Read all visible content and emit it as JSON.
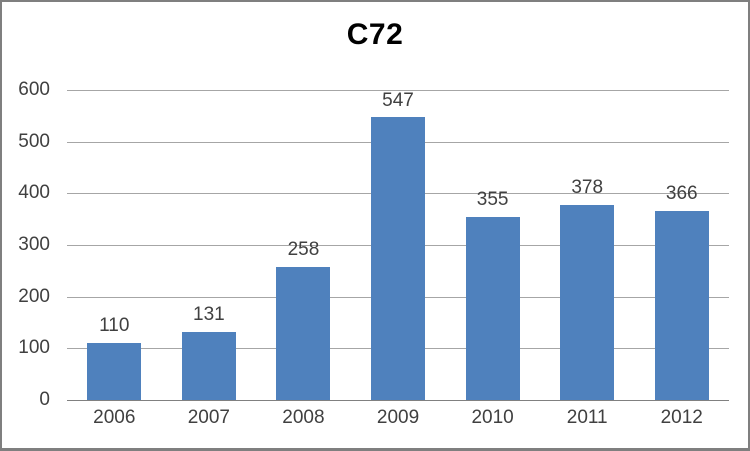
{
  "chart_data": {
    "type": "bar",
    "title": "C72",
    "categories": [
      "2006",
      "2007",
      "2008",
      "2009",
      "2010",
      "2011",
      "2012"
    ],
    "values": [
      110,
      131,
      258,
      547,
      355,
      378,
      366
    ],
    "y_ticks": [
      0,
      100,
      200,
      300,
      400,
      500,
      600
    ],
    "ylim": [
      0,
      600
    ],
    "xlabel": "",
    "ylabel": "",
    "grid": "horizontal",
    "legend": "none",
    "data_labels": "above-bars",
    "colors": {
      "bar": "#4F81BD",
      "gridline": "#A6A6A6",
      "axis_line": "#808080",
      "tick_text": "#404040",
      "title_text": "#000000",
      "frame_border": "#7F7F7F",
      "background": "#FFFFFF"
    }
  }
}
